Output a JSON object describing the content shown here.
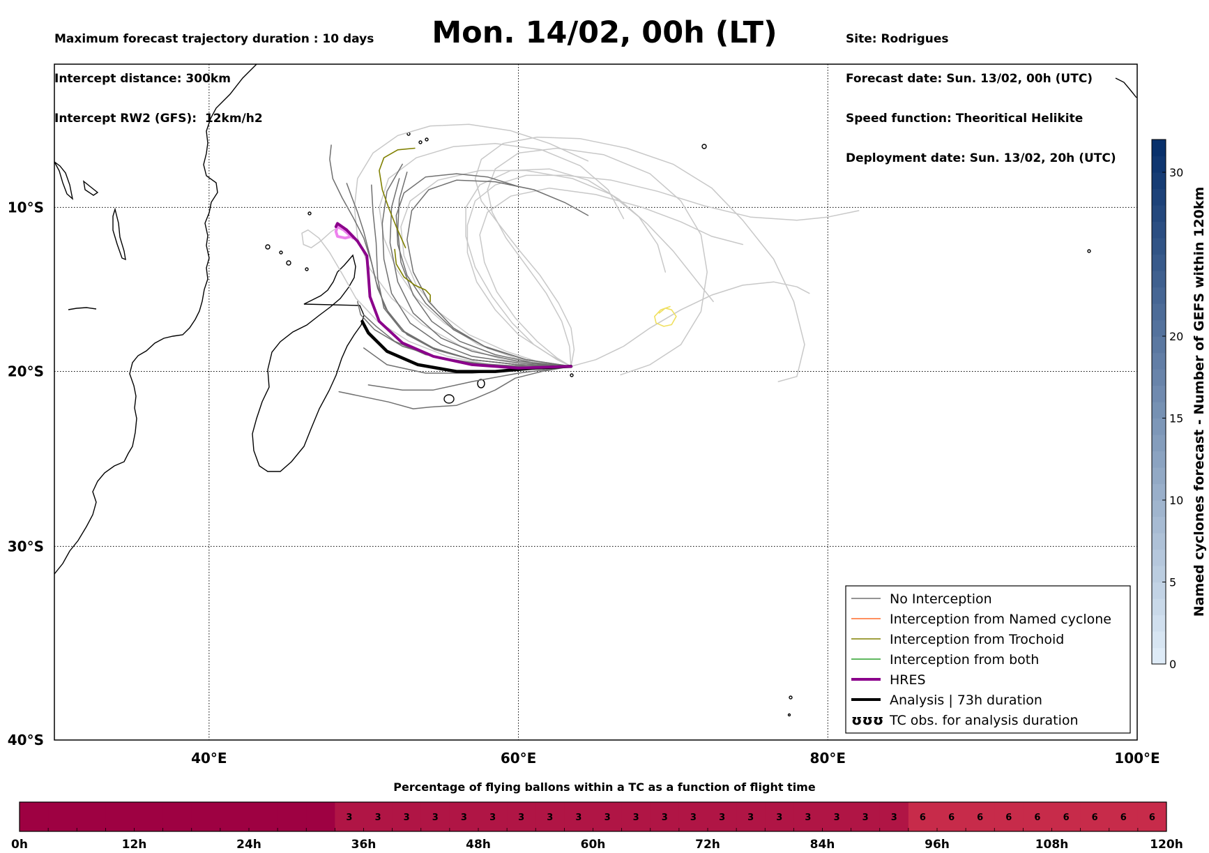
{
  "header": {
    "left": [
      "Maximum forecast trajectory duration : 10 days",
      "Intercept distance: 300km",
      "Intercept RW2 (GFS):  12km/h2"
    ],
    "title": "Mon. 14/02, 00h (LT)",
    "right": [
      "Site: Rodrigues",
      "Forecast date: Sun. 13/02, 00h (UTC)",
      "Speed function: Theoritical Helikite",
      "Deployment date: Sun. 13/02, 20h (UTC)"
    ]
  },
  "colors": {
    "no_interception": "#707070",
    "named_cyclone": "#ff6a2a",
    "trochoid": "#808000",
    "both": "#2ca02c",
    "hres": "#8b008b",
    "hres_light": "#ee82ee",
    "analysis": "#000000",
    "ensemble_light": "#c8c8c8",
    "yellow_track": "#f0e060"
  },
  "chart_data": [
    {
      "type": "map-trajectories",
      "xlabel": "",
      "ylabel": "",
      "lon_range": [
        30,
        100
      ],
      "lat_range": [
        -40,
        -1
      ],
      "x_ticks": [
        "40°E",
        "60°E",
        "80°E",
        "100°E"
      ],
      "x_tick_values": [
        40,
        60,
        80,
        100
      ],
      "y_ticks": [
        "10°S",
        "20°S",
        "30°S",
        "40°S"
      ],
      "y_tick_values": [
        -10,
        -20,
        -30,
        -40
      ],
      "grid": true,
      "legend_position": "bottom-right",
      "legend": [
        {
          "label": "No Interception",
          "style": "no_interception"
        },
        {
          "label": "Interception from Named cyclone",
          "style": "named_cyclone"
        },
        {
          "label": "Interception from Trochoid",
          "style": "trochoid"
        },
        {
          "label": "Interception from both",
          "style": "both"
        },
        {
          "label": "HRES",
          "style": "hres"
        },
        {
          "label": "Analysis | 73h duration",
          "style": "analysis"
        },
        {
          "label": "TC obs. for analysis duration",
          "style": "tc_obs",
          "symbol": "ʊʊʊ"
        }
      ],
      "launch_point": {
        "lon": 63.4,
        "lat": -19.7
      },
      "series": [
        {
          "name": "HRES",
          "style": "hres",
          "lon": [
            63.4,
            60,
            57,
            54.5,
            52.5,
            51,
            50.4,
            50.3,
            50.2,
            49.6,
            48.9,
            48.3,
            48.2
          ],
          "lat": [
            -19.7,
            -19.8,
            -19.6,
            -19.1,
            -18.3,
            -17,
            -15.5,
            -14.2,
            -13.0,
            -12.1,
            -11.4,
            -11.0,
            -11.2
          ]
        },
        {
          "name": "HRES end",
          "style": "hres_light",
          "lon": [
            49.3,
            48.7,
            48.3,
            48.2,
            48.3,
            48.8,
            49.2
          ],
          "lat": [
            -11.9,
            -11.4,
            -11.2,
            -11.5,
            -11.8,
            -11.9,
            -11.8
          ]
        },
        {
          "name": "Analysis",
          "style": "analysis",
          "lon": [
            63.4,
            61,
            58.5,
            56,
            53.5,
            51.5,
            50.3,
            49.9
          ],
          "lat": [
            -19.7,
            -19.8,
            -20.0,
            -20.0,
            -19.6,
            -18.8,
            -17.7,
            -17.0
          ]
        },
        {
          "style": "no_interception",
          "lon": [
            63.4,
            60,
            57,
            54,
            52,
            50.8,
            50.0
          ],
          "lat": [
            -19.7,
            -19.7,
            -19.5,
            -19.0,
            -18.2,
            -17.3,
            -16.6
          ]
        },
        {
          "style": "no_interception",
          "lon": [
            63.4,
            60,
            57,
            54.5,
            52.5,
            51.3,
            50.9,
            50.8,
            50.6,
            50.5
          ],
          "lat": [
            -19.7,
            -19.6,
            -19.3,
            -18.6,
            -17.6,
            -16.2,
            -14.4,
            -12.2,
            -10.3,
            -8.6
          ]
        },
        {
          "style": "no_interception",
          "lon": [
            63.4,
            60,
            57,
            55,
            53,
            51.8,
            51.3,
            51.2,
            51.5,
            52.5
          ],
          "lat": [
            -19.7,
            -19.5,
            -19.1,
            -18.4,
            -17.1,
            -15.3,
            -13.2,
            -11.0,
            -9.0,
            -7.3
          ]
        },
        {
          "style": "no_interception",
          "lon": [
            63.4,
            60,
            57,
            55,
            53.2,
            52.2,
            51.7,
            51.8,
            52.3
          ],
          "lat": [
            -19.7,
            -19.4,
            -18.8,
            -18.0,
            -16.5,
            -14.6,
            -12.2,
            -10.0,
            -8.2
          ]
        },
        {
          "style": "no_interception",
          "lon": [
            63.4,
            60.5,
            58,
            55.8,
            54,
            52.8,
            52.2,
            52.1,
            52.6,
            54,
            56,
            58,
            60
          ],
          "lat": [
            -19.7,
            -19.3,
            -18.6,
            -17.5,
            -15.9,
            -14.2,
            -12.3,
            -10.5,
            -9.1,
            -8.1,
            -7.9,
            -8.1,
            -8.7
          ]
        },
        {
          "style": "no_interception",
          "lon": [
            63.4,
            60,
            57,
            54.6,
            52.8,
            51.6,
            50.9,
            50.5,
            50.0,
            49.3,
            48.6,
            48.0,
            47.8,
            47.9
          ],
          "lat": [
            -19.7,
            -19.6,
            -19.3,
            -18.7,
            -17.8,
            -16.5,
            -15.0,
            -13.4,
            -11.9,
            -10.6,
            -9.4,
            -8.2,
            -7.0,
            -6.1
          ]
        },
        {
          "style": "no_interception",
          "lon": [
            63.4,
            60,
            57,
            54.5,
            52.6,
            51.4,
            50.8,
            50.4,
            50.0,
            49.6,
            49.2,
            48.9
          ],
          "lat": [
            -19.7,
            -19.6,
            -19.3,
            -18.6,
            -17.6,
            -16.2,
            -14.6,
            -13.0,
            -11.5,
            -10.3,
            -9.3,
            -8.5
          ]
        },
        {
          "style": "no_interception",
          "lon": [
            63.4,
            60.5,
            57.8,
            55.8,
            54.2,
            53.2,
            52.8,
            53.1,
            54.2,
            56,
            58.5,
            61,
            63,
            64.5
          ],
          "lat": [
            -19.7,
            -19.3,
            -18.5,
            -17.4,
            -15.8,
            -14.0,
            -12.0,
            -10.2,
            -8.9,
            -8.3,
            -8.4,
            -8.9,
            -9.7,
            -10.5
          ]
        },
        {
          "style": "no_interception",
          "lon": [
            63.4,
            61,
            58.5,
            56.2,
            54.4,
            53.2,
            52.4,
            52.2,
            52.3,
            52.8
          ],
          "lat": [
            -19.7,
            -19.5,
            -19.0,
            -18.2,
            -17.0,
            -15.4,
            -13.4,
            -11.4,
            -9.5,
            -7.8
          ]
        },
        {
          "style": "no_interception",
          "lon": [
            63.4,
            60,
            57,
            54,
            51.5,
            50.0
          ],
          "lat": [
            -19.7,
            -19.9,
            -20.1,
            -20.1,
            -19.6,
            -18.6
          ]
        },
        {
          "style": "no_interception",
          "lon": [
            63.4,
            60,
            57,
            54.5,
            52.5,
            50.3
          ],
          "lat": [
            -19.7,
            -20.1,
            -20.6,
            -21.1,
            -21.1,
            -20.8
          ]
        },
        {
          "style": "no_interception",
          "lon": [
            63.4,
            61.5,
            59.8,
            58.5,
            57.2,
            56.0,
            54.3,
            53.2,
            51.6,
            48.4
          ],
          "lat": [
            -19.7,
            -20.0,
            -20.4,
            -21.1,
            -21.6,
            -22.0,
            -22.1,
            -22.2,
            -21.8,
            -21.2
          ]
        },
        {
          "style": "no_interception",
          "lon": [
            63.4,
            61.0,
            58.0,
            55.0,
            52.5,
            50.7,
            49.8,
            49.6
          ],
          "lat": [
            -19.7,
            -19.7,
            -19.6,
            -19.2,
            -18.5,
            -17.5,
            -16.6,
            -15.8
          ]
        },
        {
          "style": "ensemble_light",
          "lon": [
            63.4,
            62,
            60,
            58.5,
            57.3,
            56.7,
            56.7,
            57.2,
            58.5,
            60.5,
            63,
            66,
            69,
            72,
            75,
            78,
            80,
            82
          ],
          "lat": [
            -19.7,
            -19.0,
            -17.8,
            -16.3,
            -14.6,
            -12.8,
            -11.1,
            -9.6,
            -8.6,
            -8.0,
            -8.0,
            -8.3,
            -9.0,
            -9.9,
            -10.6,
            -10.8,
            -10.6,
            -10.2
          ]
        },
        {
          "style": "ensemble_light",
          "lon": [
            63.4,
            62.5,
            61.2,
            59.8,
            58.6,
            57.8,
            57.5,
            58.0,
            59.5,
            62,
            65,
            68,
            70.5,
            72.5,
            74.5
          ],
          "lat": [
            -19.7,
            -19.2,
            -18.2,
            -16.8,
            -15.2,
            -13.4,
            -11.7,
            -10.3,
            -9.3,
            -8.8,
            -9.2,
            -10.0,
            -10.9,
            -11.8,
            -12.3
          ]
        },
        {
          "style": "ensemble_light",
          "lon": [
            63.4,
            63.3,
            62.8,
            61.8,
            60.5,
            59.2,
            58.3,
            58.0,
            58.5,
            60.0,
            62.5,
            65.5,
            68.5,
            70.5,
            71.8,
            72.2,
            71.8,
            70.5,
            68.5,
            66.6
          ],
          "lat": [
            -19.7,
            -18.5,
            -17.0,
            -15.3,
            -13.6,
            -11.9,
            -10.3,
            -8.9,
            -7.6,
            -6.6,
            -6.3,
            -6.7,
            -7.9,
            -9.6,
            -11.7,
            -14.0,
            -16.4,
            -18.4,
            -19.6,
            -20.2
          ]
        },
        {
          "style": "ensemble_light",
          "lon": [
            63.4,
            63.6,
            63.4,
            62.6,
            61.4,
            60.0,
            58.7,
            57.6,
            57.2,
            57.6,
            59.0,
            61.2,
            64,
            67,
            70,
            72.5,
            74.5,
            76.5,
            77.8,
            78.5,
            78.0,
            76.8
          ],
          "lat": [
            -19.7,
            -18.7,
            -17.4,
            -15.9,
            -14.2,
            -12.6,
            -11.0,
            -9.6,
            -8.2,
            -7.0,
            -6.0,
            -5.6,
            -5.7,
            -6.3,
            -7.3,
            -8.8,
            -10.8,
            -13.2,
            -15.8,
            -18.4,
            -20.3,
            -20.6
          ]
        },
        {
          "style": "ensemble_light",
          "lon": [
            63.4,
            62.5,
            61.0,
            59.6,
            58.3,
            57.2,
            56.6,
            56.6,
            57.5,
            59.5,
            62,
            64.5,
            66.5,
            68.3,
            70.0,
            71.5,
            72.6
          ],
          "lat": [
            -19.7,
            -19.3,
            -18.4,
            -17.1,
            -15.5,
            -13.7,
            -11.8,
            -10.0,
            -8.6,
            -7.7,
            -7.6,
            -8.3,
            -9.5,
            -11.0,
            -12.7,
            -14.5,
            -15.8
          ]
        },
        {
          "style": "ensemble_light",
          "lon": [
            63.4,
            61.5,
            59.2,
            56.8,
            54.8,
            53.4,
            52.6,
            52.4,
            53.0,
            54.8,
            57.5,
            60.5,
            63.5,
            66.0,
            67.8,
            69.0,
            69.5
          ],
          "lat": [
            -19.7,
            -19.5,
            -18.8,
            -17.8,
            -16.4,
            -14.8,
            -13.0,
            -11.2,
            -9.6,
            -8.3,
            -7.7,
            -7.7,
            -8.2,
            -9.2,
            -10.6,
            -12.3,
            -14.0
          ]
        },
        {
          "style": "ensemble_light",
          "lon": [
            63.4,
            62.0,
            59.8,
            57.4,
            55.2,
            53.4,
            52.1,
            51.3,
            51.0,
            51.6,
            53.4,
            55.8,
            58.5,
            61.5,
            64.0,
            65.8,
            66.8
          ],
          "lat": [
            -19.7,
            -19.6,
            -19.2,
            -18.4,
            -17.1,
            -15.6,
            -13.8,
            -11.9,
            -10.0,
            -8.2,
            -6.9,
            -6.2,
            -6.0,
            -6.4,
            -7.4,
            -8.9,
            -10.7
          ]
        },
        {
          "style": "ensemble_light",
          "lon": [
            63.4,
            61.5,
            59.0,
            56.3,
            53.8,
            51.8,
            50.4,
            49.6,
            49.4,
            49.6,
            50.6,
            52.2,
            54.3,
            56.8,
            59.5,
            62.0,
            64.5
          ],
          "lat": [
            -19.7,
            -19.7,
            -19.3,
            -18.5,
            -17.2,
            -15.6,
            -13.8,
            -11.9,
            -10.0,
            -8.2,
            -6.6,
            -5.5,
            -4.9,
            -4.8,
            -5.2,
            -6.0,
            -7.1
          ]
        },
        {
          "style": "ensemble_light",
          "lon": [
            63.4,
            61.0,
            58.2,
            55.4,
            52.9,
            50.9,
            49.5,
            48.6,
            47.8,
            47.1,
            46.4,
            46.0,
            46.1,
            46.6,
            47.2,
            47.9,
            48.4
          ],
          "lat": [
            -19.7,
            -19.8,
            -19.6,
            -19.1,
            -18.2,
            -17.0,
            -15.6,
            -14.1,
            -12.8,
            -11.9,
            -11.4,
            -11.6,
            -12.3,
            -12.5,
            -12.1,
            -11.5,
            -11.2
          ]
        },
        {
          "style": "ensemble_light",
          "lon": [
            63.4,
            65.0,
            66.8,
            68.5,
            70.5,
            72.5,
            74.5,
            76.5,
            78.0,
            78.8
          ],
          "lat": [
            -19.7,
            -19.3,
            -18.5,
            -17.4,
            -16.3,
            -15.4,
            -14.8,
            -14.6,
            -14.9,
            -15.3
          ]
        },
        {
          "style": "trochoid",
          "lon": [
            52.7,
            52.1,
            51.6,
            51.2,
            51.0,
            51.3,
            52.2,
            53.3
          ],
          "lat": [
            -12.5,
            -11.2,
            -10.0,
            -8.9,
            -7.7,
            -6.9,
            -6.4,
            -6.3
          ]
        },
        {
          "style": "trochoid",
          "lon": [
            52.0,
            52.1,
            52.6,
            53.3,
            54.0,
            54.3,
            54.3
          ],
          "lat": [
            -12.6,
            -13.5,
            -14.3,
            -14.8,
            -15.1,
            -15.4,
            -15.8
          ]
        },
        {
          "style": "yellow_track",
          "lon": [
            69.1,
            69.5,
            69.9,
            70.2,
            69.9,
            69.4,
            68.9,
            68.8,
            69.2,
            69.8
          ],
          "lat": [
            -16.5,
            -16.2,
            -16.3,
            -16.7,
            -17.2,
            -17.3,
            -17.1,
            -16.7,
            -16.3,
            -16.1
          ]
        }
      ]
    },
    {
      "type": "heatmap",
      "name": "Named cyclones forecast - Number of GEFS within 120km",
      "ylabel": "Named cyclones forecast - Number of GEFS within 120km",
      "range": [
        0,
        32
      ],
      "ticks": [
        0,
        5,
        10,
        15,
        20,
        30
      ]
    },
    {
      "type": "bar",
      "title": "Percentage of flying ballons within a TC as a function of flight time",
      "xlabel": "",
      "x_ticks": [
        "0h",
        "12h",
        "24h",
        "36h",
        "48h",
        "60h",
        "72h",
        "84h",
        "96h",
        "108h",
        "120h"
      ],
      "x_range_hours": [
        0,
        120
      ],
      "bin_hours": 3,
      "values": [
        0,
        0,
        0,
        0,
        0,
        0,
        0,
        0,
        0,
        0,
        0,
        3,
        3,
        3,
        3,
        3,
        3,
        3,
        3,
        3,
        3,
        3,
        3,
        3,
        3,
        3,
        3,
        3,
        3,
        3,
        3,
        6,
        6,
        6,
        6,
        6,
        6,
        6,
        6,
        6,
        6
      ],
      "colors": {
        "0": "#9e0142",
        "3": "#b01545",
        "6": "#c72b4a"
      }
    }
  ]
}
